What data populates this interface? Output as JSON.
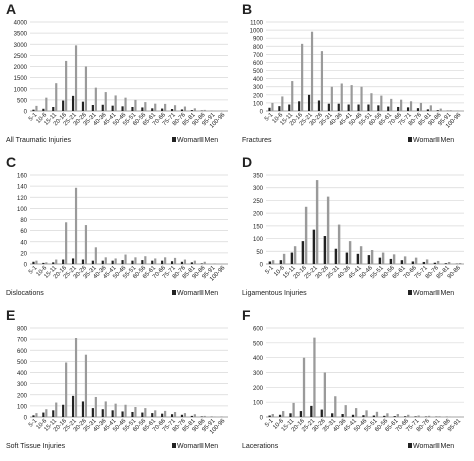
{
  "chart_data": [
    {
      "panel_letter": "A",
      "type": "bar",
      "label": "All Traumatic Injuries",
      "categories": [
        "5-1",
        "10-6",
        "15-11",
        "20-16",
        "25-21",
        "30-26",
        "35-31",
        "40-36",
        "45-41",
        "50-46",
        "55-51",
        "60-56",
        "65-61",
        "70-66",
        "75-71",
        "80-76",
        "85-81",
        "90-86",
        "95-91",
        "100-96"
      ],
      "y_ticks": [
        "0",
        "500",
        "1000",
        "1500",
        "2000",
        "2500",
        "3000",
        "3500",
        "4000"
      ],
      "ylim": [
        0,
        4000
      ],
      "grid": true,
      "legend_position": "bottom-right",
      "series": [
        {
          "name": "Woman",
          "color": "#222222",
          "values": [
            60,
            100,
            180,
            470,
            680,
            420,
            270,
            280,
            240,
            210,
            180,
            160,
            120,
            110,
            90,
            70,
            40,
            20,
            5,
            2
          ]
        },
        {
          "name": "Men",
          "color": "#9a9a9a",
          "values": [
            230,
            600,
            1250,
            2250,
            2950,
            2000,
            1050,
            850,
            700,
            600,
            500,
            400,
            330,
            320,
            260,
            200,
            120,
            50,
            15,
            5
          ]
        }
      ]
    },
    {
      "panel_letter": "B",
      "type": "bar",
      "label": "Fractures",
      "categories": [
        "5-1",
        "10-6",
        "15-11",
        "20-16",
        "25-21",
        "30-26",
        "35-31",
        "40-36",
        "45-41",
        "50-46",
        "55-51",
        "60-56",
        "65-61",
        "70-66",
        "75-71",
        "80-76",
        "85-81",
        "90-86",
        "95-91",
        "100-96"
      ],
      "y_ticks": [
        "0",
        "100",
        "200",
        "300",
        "400",
        "500",
        "600",
        "700",
        "800",
        "900",
        "1000",
        "1100"
      ],
      "ylim": [
        0,
        1100
      ],
      "grid": true,
      "legend_position": "bottom-right",
      "series": [
        {
          "name": "Woman",
          "color": "#222222",
          "values": [
            40,
            60,
            80,
            120,
            200,
            130,
            90,
            90,
            80,
            80,
            80,
            70,
            55,
            50,
            45,
            35,
            20,
            10,
            3,
            1
          ]
        },
        {
          "name": "Men",
          "color": "#9a9a9a",
          "values": [
            100,
            180,
            370,
            830,
            980,
            740,
            300,
            340,
            320,
            300,
            220,
            190,
            150,
            140,
            120,
            100,
            70,
            30,
            10,
            3
          ]
        }
      ]
    },
    {
      "panel_letter": "C",
      "type": "bar",
      "label": "Dislocations",
      "categories": [
        "5-1",
        "10-6",
        "15-11",
        "20-16",
        "25-21",
        "30-26",
        "35-31",
        "40-36",
        "45-41",
        "50-46",
        "55-51",
        "60-56",
        "65-61",
        "70-66",
        "75-71",
        "80-76",
        "85-81",
        "90-86",
        "95-91",
        "100-96"
      ],
      "y_ticks": [
        "0",
        "20",
        "40",
        "60",
        "80",
        "100",
        "120",
        "140",
        "160"
      ],
      "ylim": [
        0,
        160
      ],
      "grid": true,
      "legend_position": "bottom-right",
      "series": [
        {
          "name": "Woman",
          "color": "#222222",
          "values": [
            4,
            2,
            3,
            8,
            10,
            8,
            6,
            6,
            6,
            7,
            6,
            7,
            6,
            6,
            5,
            4,
            3,
            1,
            0,
            0
          ]
        },
        {
          "name": "Men",
          "color": "#9a9a9a",
          "values": [
            6,
            3,
            8,
            75,
            137,
            70,
            30,
            12,
            10,
            17,
            12,
            14,
            10,
            12,
            11,
            8,
            6,
            4,
            1,
            0
          ]
        }
      ]
    },
    {
      "panel_letter": "D",
      "type": "bar",
      "label": "Ligamentous Injuries",
      "categories": [
        "5-1",
        "10-6",
        "15-11",
        "20-16",
        "25-21",
        "30-26",
        "35-31",
        "40-36",
        "45-41",
        "50-46",
        "55-51",
        "60-56",
        "65-61",
        "70-66",
        "75-71",
        "80-76",
        "85-81",
        "90-86"
      ],
      "y_ticks": [
        "0",
        "50",
        "100",
        "150",
        "200",
        "250",
        "300",
        "350"
      ],
      "ylim": [
        0,
        350
      ],
      "grid": true,
      "legend_position": "bottom-right",
      "series": [
        {
          "name": "Woman",
          "color": "#222222",
          "values": [
            10,
            15,
            45,
            90,
            135,
            110,
            60,
            45,
            40,
            35,
            25,
            20,
            15,
            10,
            8,
            5,
            3,
            1
          ]
        },
        {
          "name": "Men",
          "color": "#9a9a9a",
          "values": [
            15,
            40,
            70,
            225,
            330,
            265,
            155,
            90,
            70,
            55,
            45,
            38,
            30,
            25,
            18,
            12,
            8,
            4
          ]
        }
      ]
    },
    {
      "panel_letter": "E",
      "type": "bar",
      "label": "Soft Tissue Injuries",
      "categories": [
        "5-1",
        "10-6",
        "15-11",
        "20-16",
        "25-21",
        "30-26",
        "35-31",
        "40-36",
        "45-41",
        "50-46",
        "55-51",
        "60-56",
        "65-61",
        "70-66",
        "75-71",
        "80-76",
        "85-81",
        "90-86",
        "95-91",
        "100-96"
      ],
      "y_ticks": [
        "0",
        "100",
        "200",
        "300",
        "400",
        "500",
        "600",
        "700",
        "800"
      ],
      "ylim": [
        0,
        800
      ],
      "grid": true,
      "legend_position": "bottom-right",
      "series": [
        {
          "name": "Woman",
          "color": "#222222",
          "values": [
            15,
            40,
            60,
            110,
            190,
            140,
            80,
            70,
            60,
            50,
            45,
            40,
            35,
            30,
            25,
            20,
            10,
            5,
            2,
            1
          ]
        },
        {
          "name": "Men",
          "color": "#9a9a9a",
          "values": [
            35,
            70,
            130,
            490,
            710,
            560,
            180,
            140,
            120,
            110,
            90,
            80,
            60,
            55,
            45,
            35,
            25,
            10,
            4,
            1
          ]
        }
      ]
    },
    {
      "panel_letter": "F",
      "type": "bar",
      "label": "Lacerations",
      "categories": [
        "5-1",
        "10-6",
        "15-11",
        "20-16",
        "25-21",
        "30-26",
        "35-31",
        "40-36",
        "45-41",
        "50-46",
        "55-51",
        "60-56",
        "65-61",
        "70-66",
        "75-71",
        "80-76",
        "85-81",
        "90-86",
        "95-91"
      ],
      "y_ticks": [
        "0",
        "100",
        "200",
        "300",
        "400",
        "500",
        "600"
      ],
      "ylim": [
        0,
        600
      ],
      "grid": true,
      "legend_position": "bottom-right",
      "series": [
        {
          "name": "Woman",
          "color": "#222222",
          "values": [
            10,
            15,
            25,
            40,
            75,
            50,
            25,
            20,
            15,
            12,
            10,
            8,
            6,
            5,
            4,
            3,
            2,
            1,
            0
          ]
        },
        {
          "name": "Men",
          "color": "#9a9a9a",
          "values": [
            20,
            40,
            95,
            400,
            535,
            300,
            140,
            80,
            60,
            45,
            35,
            25,
            20,
            15,
            10,
            8,
            5,
            3,
            1
          ]
        }
      ]
    }
  ]
}
